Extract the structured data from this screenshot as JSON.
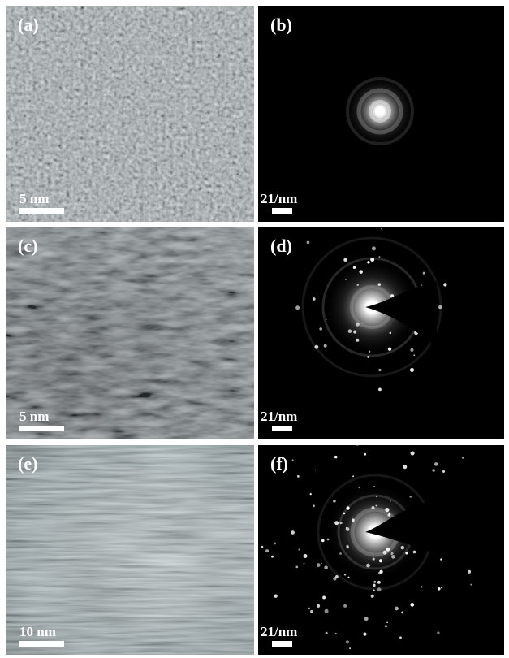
{
  "panels": [
    {
      "label": "(a)",
      "scale_label": "5 nm"
    },
    {
      "label": "(b)",
      "scale_label": "21/nm"
    },
    {
      "label": "(c)",
      "scale_label": "5 nm"
    },
    {
      "label": "(d)",
      "scale_label": "21/nm"
    },
    {
      "label": "(e)",
      "scale_label": "10 nm"
    },
    {
      "label": "(f)",
      "scale_label": "21/nm"
    }
  ]
}
